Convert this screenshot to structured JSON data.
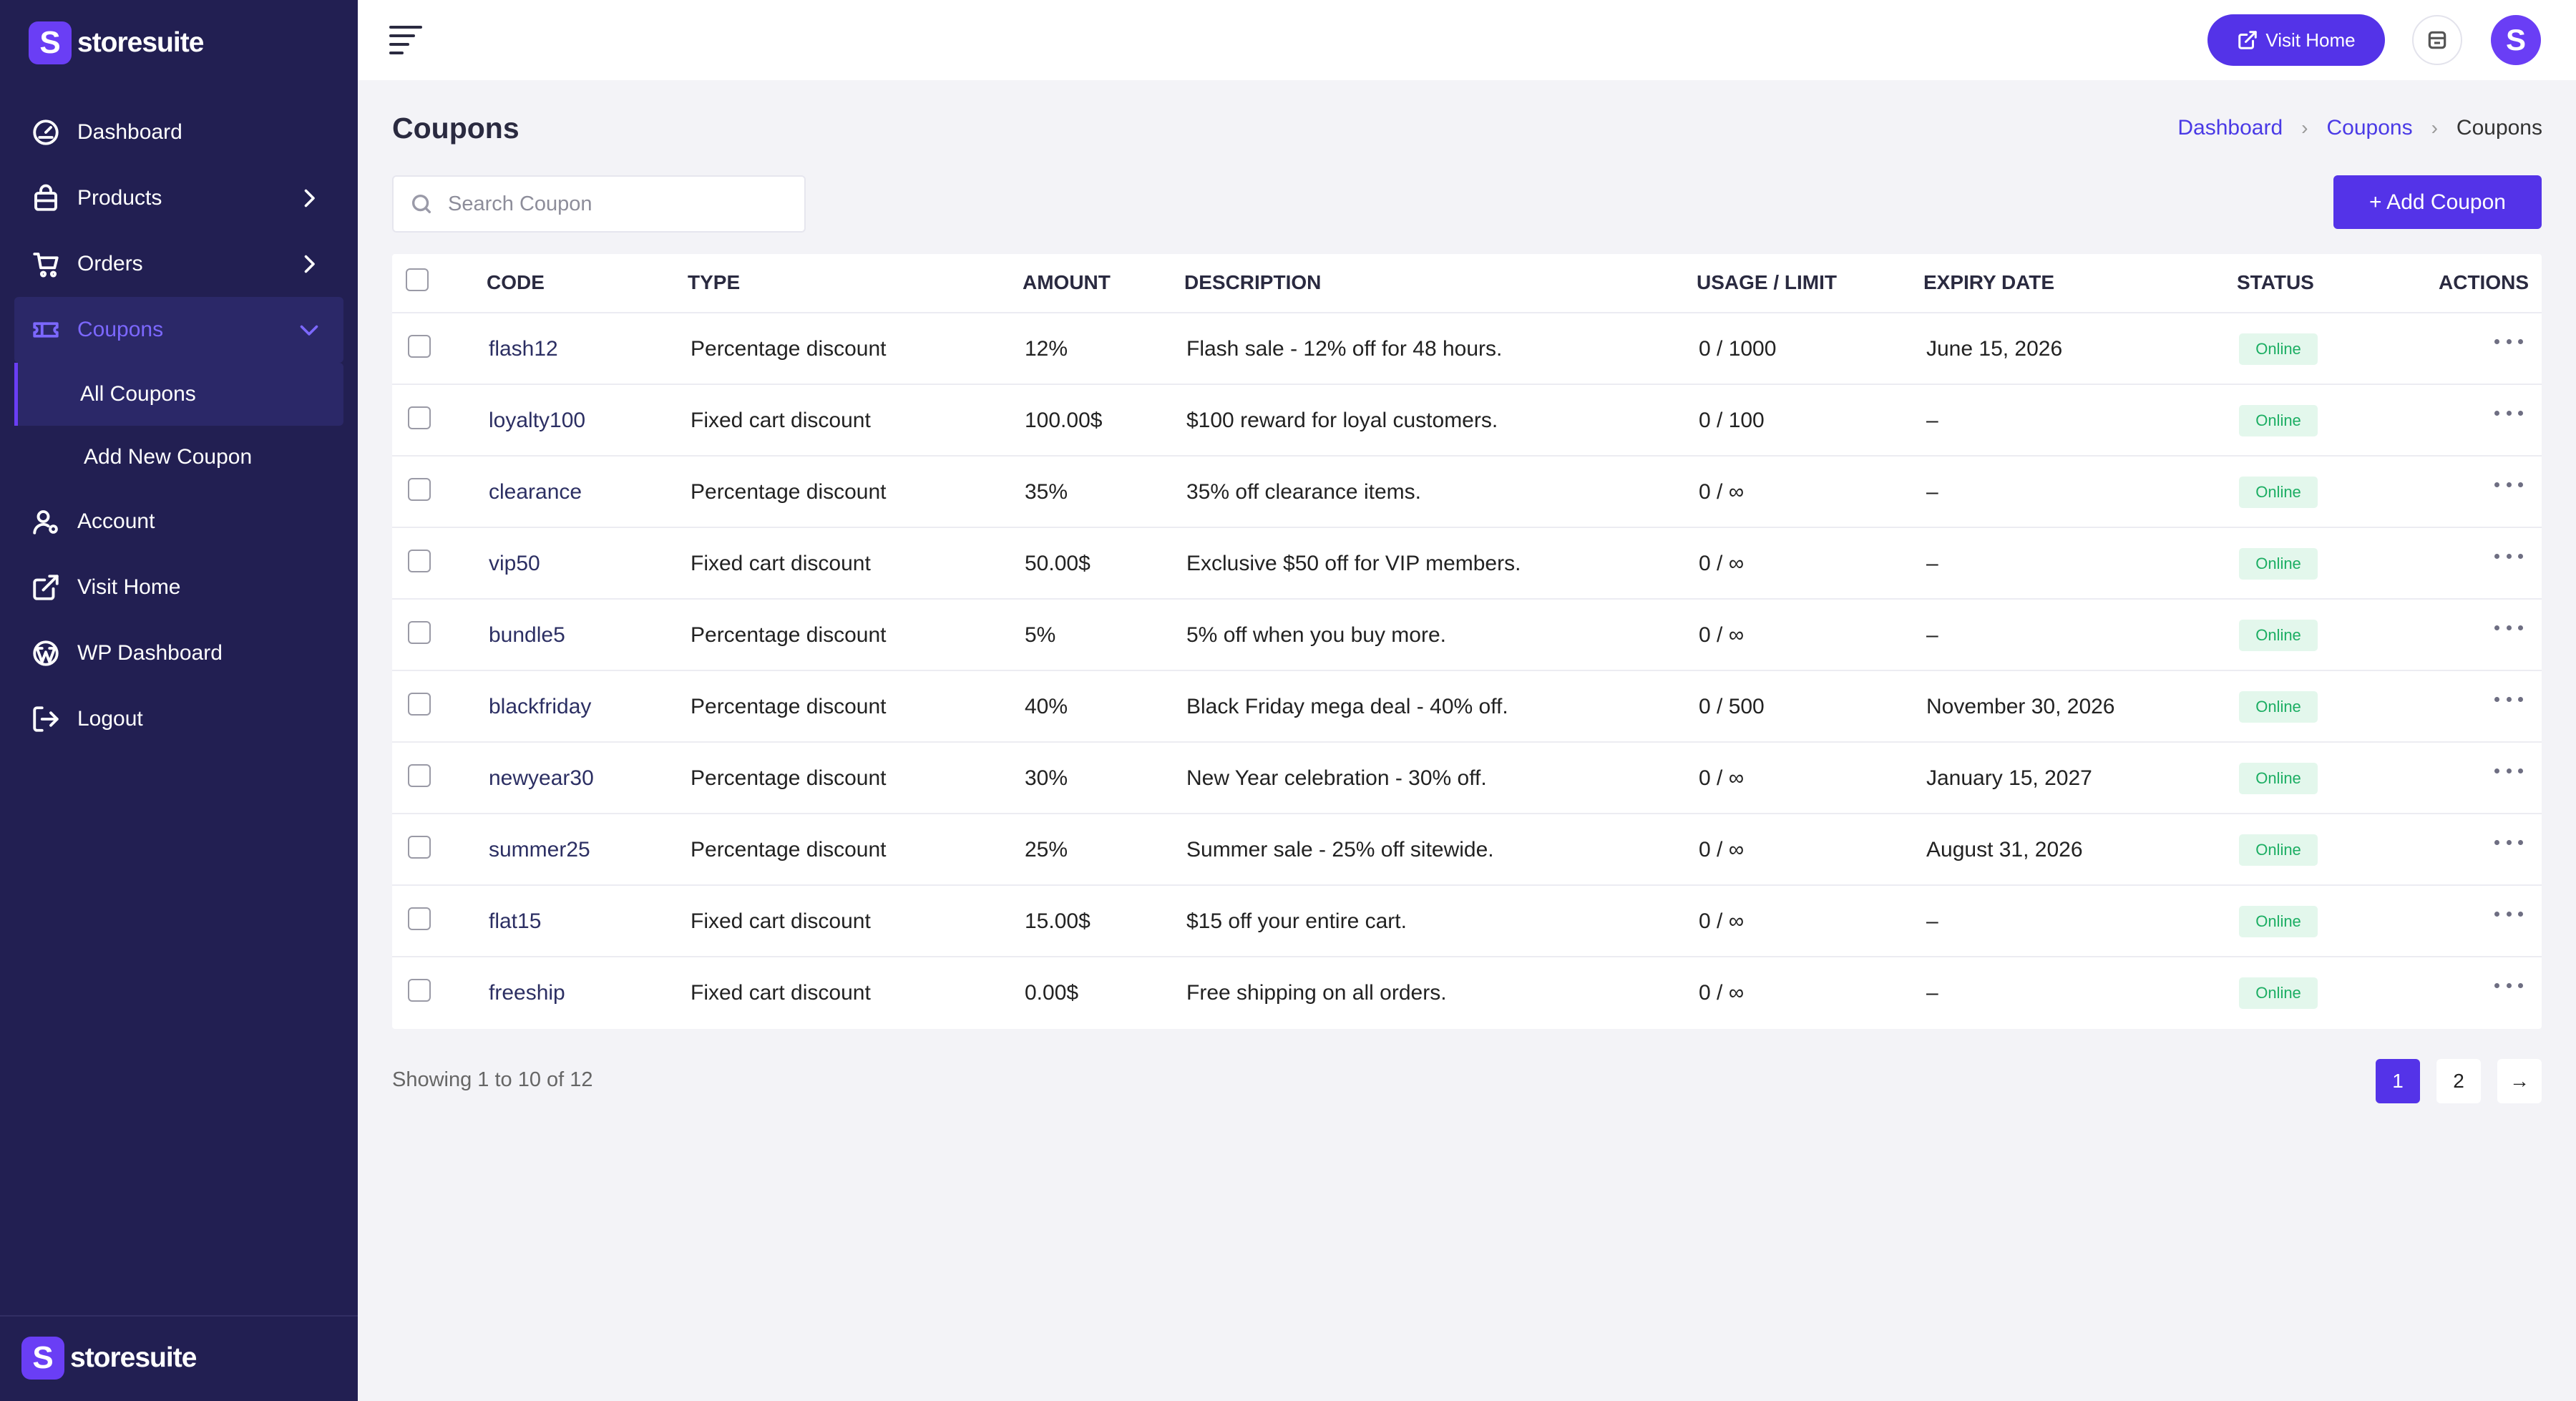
{
  "brand": {
    "name": "storesuite",
    "logo_letter": "S",
    "color": "#6a3ef5"
  },
  "sidebar": {
    "items": [
      {
        "label": "Dashboard",
        "icon": "gauge-icon"
      },
      {
        "label": "Products",
        "icon": "bag-icon",
        "chevron": "chevron-right-icon"
      },
      {
        "label": "Orders",
        "icon": "cart-icon",
        "chevron": "chevron-right-icon"
      },
      {
        "label": "Coupons",
        "icon": "ticket-icon",
        "chevron": "chevron-down-icon",
        "expanded": true,
        "children": [
          {
            "label": "All Coupons",
            "current": true
          },
          {
            "label": "Add New Coupon"
          }
        ]
      },
      {
        "label": "Account",
        "icon": "user-gear-icon"
      },
      {
        "label": "Visit Home",
        "icon": "external-link-icon"
      },
      {
        "label": "WP Dashboard",
        "icon": "wordpress-icon"
      },
      {
        "label": "Logout",
        "icon": "logout-icon"
      }
    ]
  },
  "topbar": {
    "visit_home_label": "Visit Home",
    "avatar_letter": "S"
  },
  "page": {
    "title": "Coupons",
    "breadcrumb": [
      "Dashboard",
      "Coupons",
      "Coupons"
    ],
    "search_placeholder": "Search Coupon",
    "add_button_label": "+ Add Coupon"
  },
  "table": {
    "columns": [
      "CODE",
      "TYPE",
      "AMOUNT",
      "DESCRIPTION",
      "USAGE / LIMIT",
      "EXPIRY DATE",
      "STATUS",
      "ACTIONS"
    ],
    "rows": [
      {
        "code": "flash12",
        "type": "Percentage discount",
        "amount": "12%",
        "description": "Flash sale - 12% off for 48 hours.",
        "usage": "0 / 1000",
        "expiry": "June 15, 2026",
        "status": "Online"
      },
      {
        "code": "loyalty100",
        "type": "Fixed cart discount",
        "amount": "100.00$",
        "description": "$100 reward for loyal customers.",
        "usage": "0 / 100",
        "expiry": "–",
        "status": "Online"
      },
      {
        "code": "clearance",
        "type": "Percentage discount",
        "amount": "35%",
        "description": "35% off clearance items.",
        "usage": "0 / ∞",
        "expiry": "–",
        "status": "Online"
      },
      {
        "code": "vip50",
        "type": "Fixed cart discount",
        "amount": "50.00$",
        "description": "Exclusive $50 off for VIP members.",
        "usage": "0 / ∞",
        "expiry": "–",
        "status": "Online"
      },
      {
        "code": "bundle5",
        "type": "Percentage discount",
        "amount": "5%",
        "description": "5% off when you buy more.",
        "usage": "0 / ∞",
        "expiry": "–",
        "status": "Online"
      },
      {
        "code": "blackfriday",
        "type": "Percentage discount",
        "amount": "40%",
        "description": "Black Friday mega deal - 40% off.",
        "usage": "0 / 500",
        "expiry": "November 30, 2026",
        "status": "Online"
      },
      {
        "code": "newyear30",
        "type": "Percentage discount",
        "amount": "30%",
        "description": "New Year celebration - 30% off.",
        "usage": "0 / ∞",
        "expiry": "January 15, 2027",
        "status": "Online"
      },
      {
        "code": "summer25",
        "type": "Percentage discount",
        "amount": "25%",
        "description": "Summer sale - 25% off sitewide.",
        "usage": "0 / ∞",
        "expiry": "August 31, 2026",
        "status": "Online"
      },
      {
        "code": "flat15",
        "type": "Fixed cart discount",
        "amount": "15.00$",
        "description": "$15 off your entire cart.",
        "usage": "0 / ∞",
        "expiry": "–",
        "status": "Online"
      },
      {
        "code": "freeship",
        "type": "Fixed cart discount",
        "amount": "0.00$",
        "description": "Free shipping on all orders.",
        "usage": "0 / ∞",
        "expiry": "–",
        "status": "Online"
      }
    ]
  },
  "pagination": {
    "summary": "Showing 1 to 10 of 12",
    "pages": [
      "1",
      "2"
    ],
    "current": "1",
    "next": "→"
  },
  "colors": {
    "sidebar_bg": "#221f52",
    "accent": "#5433e8",
    "status_online_bg": "#e3f7ec",
    "status_online_text": "#1cae63"
  }
}
